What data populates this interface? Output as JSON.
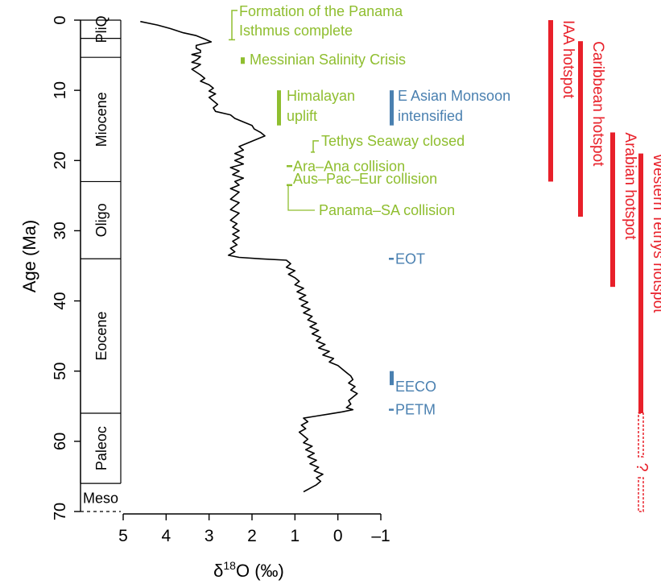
{
  "chart_data": {
    "type": "line",
    "xlabel_main": "δ",
    "xlabel_sup": "18",
    "xlabel_rest": "O (‰)",
    "ylabel": "Age (Ma)",
    "xlim": [
      5,
      -1
    ],
    "ylim": [
      0,
      70
    ],
    "x_ticks": [
      5,
      4,
      3,
      2,
      1,
      0,
      -1
    ],
    "x_tick_labels": [
      "5",
      "4",
      "3",
      "2",
      "1",
      "0",
      "–1"
    ],
    "y_ticks": [
      0,
      10,
      20,
      30,
      40,
      50,
      60,
      70
    ],
    "y_tick_labels": [
      "0",
      "10",
      "20",
      "30",
      "40",
      "50",
      "60",
      "70"
    ],
    "colors": {
      "curve": "#000000",
      "tectonic": "#8fbe2f",
      "climate": "#4a80b0",
      "hotspot": "#e8202a"
    },
    "epochs": [
      {
        "label": "PliQ",
        "from": 0,
        "to": 2.6
      },
      {
        "label": "",
        "from": 2.6,
        "to": 5.3
      },
      {
        "label": "Miocene",
        "from": 5.3,
        "to": 23
      },
      {
        "label": "Oligo",
        "from": 23,
        "to": 34
      },
      {
        "label": "Eocene",
        "from": 34,
        "to": 56
      },
      {
        "label": "Paleoc",
        "from": 56,
        "to": 66
      },
      {
        "label": "Meso",
        "from": 66,
        "to": 70
      }
    ],
    "series": [
      {
        "values": [
          [
            4.6,
            0.2
          ],
          [
            4.2,
            0.7
          ],
          [
            3.9,
            1.2
          ],
          [
            3.6,
            1.8
          ],
          [
            3.3,
            2.2
          ],
          [
            3.1,
            2.7
          ],
          [
            2.95,
            3.1
          ],
          [
            3.3,
            3.6
          ],
          [
            3.3,
            4.0
          ],
          [
            3.2,
            4.3
          ],
          [
            3.2,
            4.6
          ],
          [
            3.4,
            4.9
          ],
          [
            3.2,
            5.2
          ],
          [
            3.3,
            5.7
          ],
          [
            3.4,
            6.0
          ],
          [
            3.2,
            6.3
          ],
          [
            3.3,
            6.7
          ],
          [
            3.4,
            7.0
          ],
          [
            3.3,
            7.4
          ],
          [
            3.2,
            7.8
          ],
          [
            3.1,
            8.3
          ],
          [
            3.2,
            8.7
          ],
          [
            3.0,
            9.2
          ],
          [
            2.9,
            9.7
          ],
          [
            3.0,
            10.1
          ],
          [
            2.85,
            10.5
          ],
          [
            3.0,
            11.0
          ],
          [
            2.9,
            11.5
          ],
          [
            2.8,
            12.0
          ],
          [
            2.9,
            12.5
          ],
          [
            2.85,
            13.0
          ],
          [
            2.5,
            13.5
          ],
          [
            2.4,
            14.0
          ],
          [
            2.2,
            14.5
          ],
          [
            2.0,
            15.0
          ],
          [
            1.95,
            15.5
          ],
          [
            1.8,
            16.0
          ],
          [
            1.7,
            16.5
          ],
          [
            1.9,
            17.0
          ],
          [
            2.1,
            17.5
          ],
          [
            2.3,
            18.0
          ],
          [
            2.2,
            18.5
          ],
          [
            2.4,
            19.0
          ],
          [
            2.2,
            19.5
          ],
          [
            2.4,
            20.0
          ],
          [
            2.2,
            20.5
          ],
          [
            2.5,
            21.0
          ],
          [
            2.3,
            21.5
          ],
          [
            2.45,
            22.0
          ],
          [
            2.2,
            22.5
          ],
          [
            2.4,
            23.0
          ],
          [
            2.3,
            23.5
          ],
          [
            2.5,
            24.0
          ],
          [
            2.3,
            24.5
          ],
          [
            2.4,
            25.0
          ],
          [
            2.5,
            25.5
          ],
          [
            2.3,
            26.0
          ],
          [
            2.4,
            26.5
          ],
          [
            2.5,
            27.0
          ],
          [
            2.3,
            27.5
          ],
          [
            2.4,
            28.0
          ],
          [
            2.5,
            28.5
          ],
          [
            2.35,
            29.0
          ],
          [
            2.45,
            29.5
          ],
          [
            2.3,
            30.0
          ],
          [
            2.45,
            30.5
          ],
          [
            2.3,
            31.0
          ],
          [
            2.45,
            31.5
          ],
          [
            2.35,
            32.0
          ],
          [
            2.5,
            32.5
          ],
          [
            2.4,
            33.0
          ],
          [
            2.55,
            33.5
          ],
          [
            2.3,
            33.8
          ],
          [
            1.8,
            34.0
          ],
          [
            1.2,
            34.2
          ],
          [
            1.1,
            34.7
          ],
          [
            1.2,
            35.2
          ],
          [
            1.0,
            35.7
          ],
          [
            1.15,
            36.2
          ],
          [
            1.0,
            36.7
          ],
          [
            0.9,
            37.2
          ],
          [
            1.0,
            37.7
          ],
          [
            0.8,
            38.2
          ],
          [
            0.95,
            38.7
          ],
          [
            0.75,
            39.2
          ],
          [
            0.9,
            39.7
          ],
          [
            0.7,
            40.2
          ],
          [
            0.85,
            40.7
          ],
          [
            0.65,
            41.2
          ],
          [
            0.8,
            41.7
          ],
          [
            0.6,
            42.2
          ],
          [
            0.7,
            42.7
          ],
          [
            0.5,
            43.2
          ],
          [
            0.65,
            43.7
          ],
          [
            0.45,
            44.2
          ],
          [
            0.6,
            44.7
          ],
          [
            0.4,
            45.2
          ],
          [
            0.5,
            45.7
          ],
          [
            0.3,
            46.2
          ],
          [
            0.45,
            46.7
          ],
          [
            0.2,
            47.2
          ],
          [
            0.35,
            47.7
          ],
          [
            0.1,
            48.2
          ],
          [
            0.2,
            48.7
          ],
          [
            0.0,
            49.2
          ],
          [
            -0.1,
            49.7
          ],
          [
            -0.2,
            50.2
          ],
          [
            -0.3,
            50.7
          ],
          [
            -0.35,
            51.2
          ],
          [
            -0.25,
            51.7
          ],
          [
            -0.4,
            52.2
          ],
          [
            -0.3,
            52.7
          ],
          [
            -0.45,
            53.2
          ],
          [
            -0.35,
            53.7
          ],
          [
            -0.25,
            54.2
          ],
          [
            -0.3,
            54.7
          ],
          [
            -0.2,
            55.2
          ],
          [
            -0.35,
            55.5
          ],
          [
            -0.1,
            55.8
          ],
          [
            0.2,
            56.1
          ],
          [
            0.5,
            56.4
          ],
          [
            0.8,
            56.7
          ],
          [
            0.7,
            57.2
          ],
          [
            0.85,
            57.7
          ],
          [
            0.75,
            58.2
          ],
          [
            0.9,
            58.7
          ],
          [
            0.8,
            59.2
          ],
          [
            0.7,
            59.7
          ],
          [
            0.8,
            60.2
          ],
          [
            0.6,
            60.7
          ],
          [
            0.75,
            61.2
          ],
          [
            0.55,
            61.7
          ],
          [
            0.7,
            62.2
          ],
          [
            0.5,
            62.7
          ],
          [
            0.65,
            63.2
          ],
          [
            0.45,
            63.7
          ],
          [
            0.55,
            64.2
          ],
          [
            0.35,
            64.7
          ],
          [
            0.5,
            65.2
          ],
          [
            0.4,
            65.7
          ],
          [
            0.5,
            66.2
          ],
          [
            0.65,
            66.7
          ],
          [
            0.8,
            67.2
          ]
        ]
      }
    ],
    "annotations": {
      "tectonic": [
        {
          "label": "Formation of the Panama Isthmus complete",
          "line1": "Formation of the Panama",
          "line2": "Isthmus complete",
          "age": 2.8
        },
        {
          "label": "Messinian Salinity Crisis",
          "from": 5.3,
          "to": 6.0
        },
        {
          "label": "Himalayan uplift",
          "line1": "Himalayan",
          "line2": "uplift",
          "from": 10,
          "to": 15
        },
        {
          "label": "Tethys Seaway closed",
          "age": 18.8
        },
        {
          "label": "Ara–Ana collision",
          "age": 20.8
        },
        {
          "label": "Aus–Pac–Eur collision",
          "age": 23.5
        },
        {
          "label": "Panama–SA collision",
          "age": 23.5
        }
      ],
      "climate": [
        {
          "label": "E Asian Monsoon intensified",
          "line1": "E Asian Monsoon",
          "line2": "intensified",
          "from": 10,
          "to": 15
        },
        {
          "label": "EOT",
          "age": 34
        },
        {
          "label": "EECO",
          "from": 50,
          "to": 52
        },
        {
          "label": "PETM",
          "age": 55.5
        }
      ]
    },
    "hotspots": [
      {
        "label": "IAA hotspot",
        "from": 0,
        "to": 23
      },
      {
        "label": "Caribbean hotspot",
        "from": 3,
        "to": 28
      },
      {
        "label": "Arabian hotspot",
        "from": 16,
        "to": 38
      },
      {
        "label": "Western Tethys hotspot",
        "from": 19,
        "to": 56,
        "uncertain_from": 56,
        "uncertain_to": 70,
        "question_mark": "?"
      }
    ]
  }
}
